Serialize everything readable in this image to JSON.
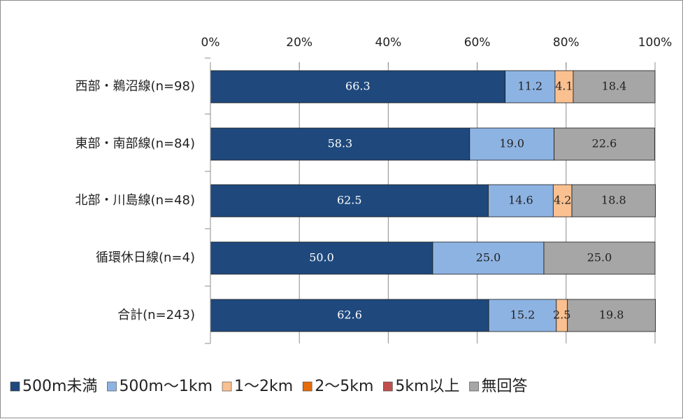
{
  "chart_data": {
    "type": "bar",
    "orientation": "horizontal",
    "stacked": "percent",
    "title": "",
    "xlabel": "",
    "ylabel": "",
    "xlim": [
      0,
      100
    ],
    "x_ticks": [
      "0%",
      "20%",
      "40%",
      "60%",
      "80%",
      "100%"
    ],
    "grid": true,
    "legend_position": "bottom",
    "categories": [
      "西部・鵜沼線(n=98)",
      "東部・南部線(n=84)",
      "北部・川島線(n=48)",
      "循環休日線(n=4)",
      "合計(n=243)"
    ],
    "series": [
      {
        "name": "500m未満",
        "color": "#1f497d",
        "label_color": "#ffffff",
        "values": [
          66.3,
          58.3,
          62.5,
          50.0,
          62.6
        ],
        "labels": [
          "66.3",
          "58.3",
          "62.5",
          "50.0",
          "62.6"
        ]
      },
      {
        "name": "500m～1km",
        "color": "#8db3e2",
        "label_color": "#222222",
        "values": [
          11.2,
          19.0,
          14.6,
          25.0,
          15.2
        ],
        "labels": [
          "11.2",
          "19.0",
          "14.6",
          "25.0",
          "15.2"
        ]
      },
      {
        "name": "1～2km",
        "color": "#fac090",
        "label_color": "#222222",
        "values": [
          4.1,
          0,
          4.2,
          0,
          2.5
        ],
        "labels": [
          "4.1",
          "",
          "4.2",
          "",
          "2.5"
        ]
      },
      {
        "name": "2～5km",
        "color": "#e46c0a",
        "label_color": "#222222",
        "values": [
          0,
          0,
          0,
          0,
          0
        ],
        "labels": [
          "",
          "",
          "",
          "",
          ""
        ]
      },
      {
        "name": "5km以上",
        "color": "#c0504d",
        "label_color": "#222222",
        "values": [
          0,
          0,
          0,
          0,
          0
        ],
        "labels": [
          "",
          "",
          "",
          "",
          ""
        ]
      },
      {
        "name": "無回答",
        "color": "#a6a6a6",
        "label_color": "#222222",
        "values": [
          18.4,
          22.6,
          18.8,
          25.0,
          19.8
        ],
        "labels": [
          "18.4",
          "22.6",
          "18.8",
          "25.0",
          "19.8"
        ]
      }
    ]
  }
}
